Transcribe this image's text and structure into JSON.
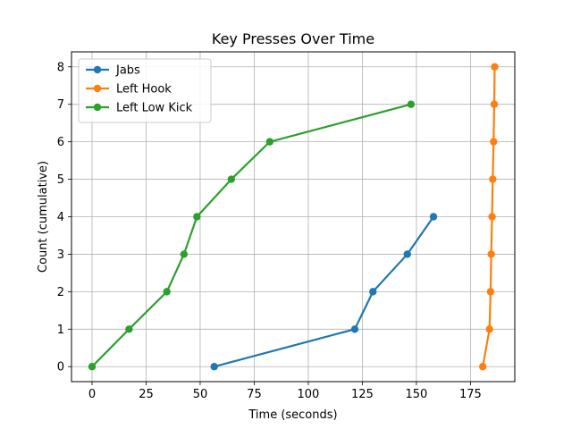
{
  "chart_data": {
    "type": "line",
    "title": "Key Presses Over Time",
    "xlabel": "Time (seconds)",
    "ylabel": "Count (cumulative)",
    "xlim": [
      -9.5,
      195.5
    ],
    "ylim": [
      -0.4,
      8.4
    ],
    "xticks": [
      0,
      25,
      50,
      75,
      100,
      125,
      150,
      175
    ],
    "yticks": [
      0,
      1,
      2,
      3,
      4,
      5,
      6,
      7,
      8
    ],
    "grid": true,
    "legend_position": "upper-left",
    "series": [
      {
        "name": "Jabs",
        "color": "#1f77b4",
        "x": [
          56.5,
          121.5,
          129.9,
          145.8,
          157.9
        ],
        "y": [
          0,
          1,
          2,
          3,
          4
        ]
      },
      {
        "name": "Left Hook",
        "color": "#ff7f0e",
        "x": [
          180.7,
          183.8,
          184.3,
          184.6,
          185.0,
          185.3,
          185.7,
          186.0,
          186.2
        ],
        "y": [
          0,
          1,
          2,
          3,
          4,
          5,
          6,
          7,
          8
        ]
      },
      {
        "name": "Left Low Kick",
        "color": "#2ca02c",
        "x": [
          0,
          17.1,
          34.6,
          42.5,
          48.5,
          64.4,
          82.2,
          147.5
        ],
        "y": [
          0,
          1,
          2,
          3,
          4,
          5,
          6,
          7
        ]
      }
    ]
  }
}
